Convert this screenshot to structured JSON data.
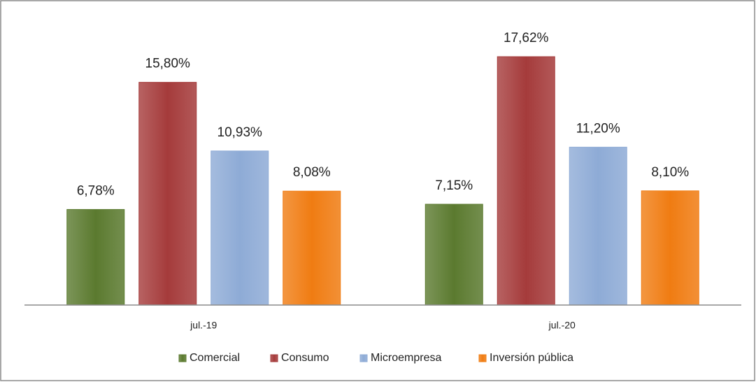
{
  "chart_data": {
    "type": "bar",
    "categories": [
      "jul.-19",
      "jul.-20"
    ],
    "series": [
      {
        "name": "Comercial",
        "color": "#5b7a2f",
        "values": [
          6.78,
          7.15
        ],
        "value_labels": [
          "6,78%",
          "7,15%"
        ]
      },
      {
        "name": "Consumo",
        "color": "#a53b3b",
        "values": [
          15.8,
          17.62
        ],
        "value_labels": [
          "15,80%",
          "17,62%"
        ]
      },
      {
        "name": "Microempresa",
        "color": "#8eabd6",
        "values": [
          10.93,
          11.2
        ],
        "value_labels": [
          "10,93%",
          "11,20%"
        ]
      },
      {
        "name": "Inversión pública",
        "color": "#f07c12",
        "values": [
          8.08,
          8.1
        ],
        "value_labels": [
          "8,08%",
          "8,10%"
        ]
      }
    ],
    "legend": "bottom"
  }
}
